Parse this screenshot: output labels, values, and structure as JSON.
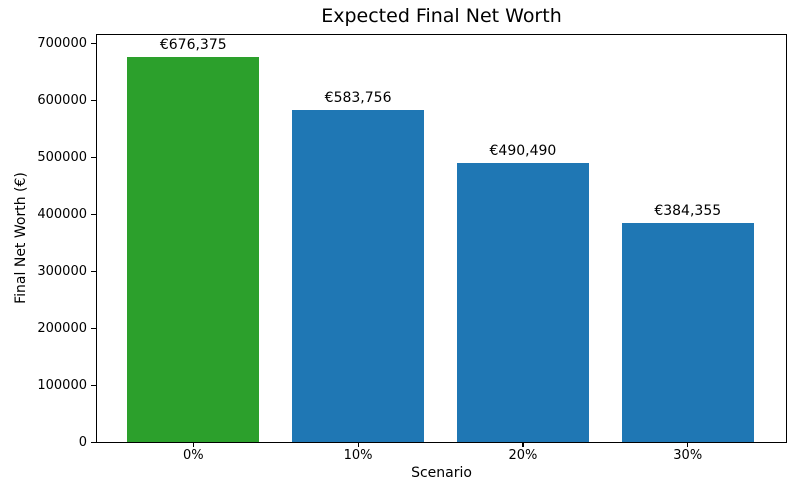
{
  "chart_data": {
    "type": "bar",
    "title": "Expected Final Net Worth",
    "xlabel": "Scenario",
    "ylabel": "Final Net Worth (€)",
    "categories": [
      "0%",
      "10%",
      "20%",
      "30%"
    ],
    "values": [
      676375,
      583756,
      490490,
      384355
    ],
    "bar_labels": [
      "€676,375",
      "€583,756",
      "€490,490",
      "€384,355"
    ],
    "bar_colors": [
      "#2ca02c",
      "#1f77b4",
      "#1f77b4",
      "#1f77b4"
    ],
    "yticks": [
      0,
      100000,
      200000,
      300000,
      400000,
      500000,
      600000,
      700000
    ],
    "ylim": [
      0,
      715000
    ],
    "grid": false,
    "legend_position": null,
    "background_color": "#ffffff",
    "frame_color": "#000000"
  }
}
